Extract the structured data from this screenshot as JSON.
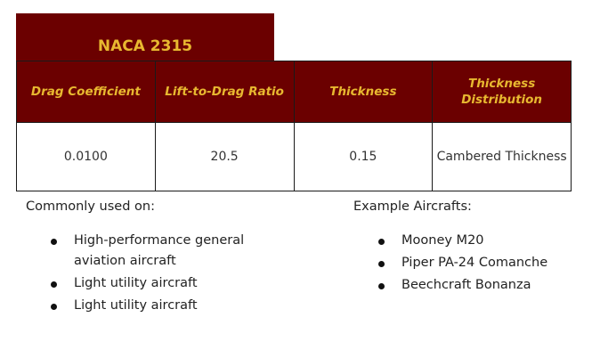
{
  "airfoil": {
    "name": "NACA 2315"
  },
  "table": {
    "headers": [
      "Drag Coefficient",
      "Lift-to-Drag Ratio",
      "Thickness",
      "Thickness Distribution"
    ],
    "values": [
      "0.0100",
      "20.5",
      "0.15",
      "Cambered Thickness"
    ]
  },
  "usage": {
    "heading": "Commonly used on:",
    "items": [
      "High-performance general aviation aircraft",
      "Light utility aircraft",
      "Light utility aircraft"
    ]
  },
  "examples": {
    "heading": "Example Aircrafts:",
    "items": [
      "Mooney M20",
      "Piper PA-24 Comanche",
      "Beechcraft Bonanza"
    ]
  },
  "colors": {
    "header_bg": "#6b0000",
    "header_text": "#e8b830"
  }
}
